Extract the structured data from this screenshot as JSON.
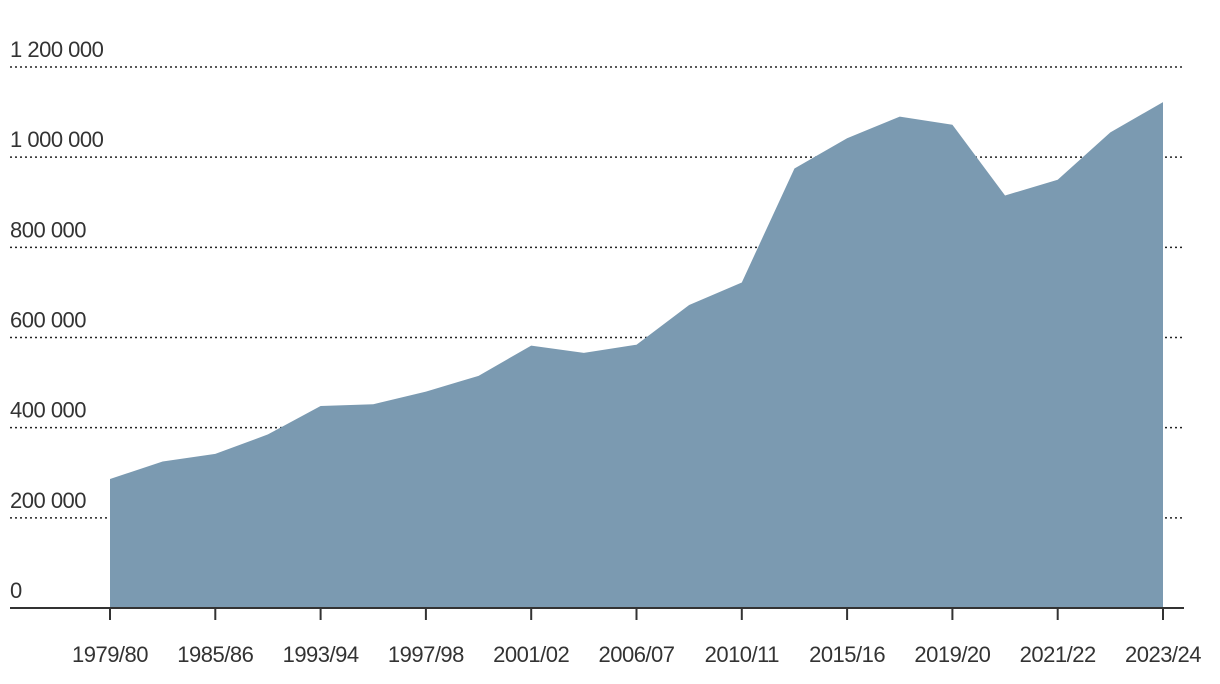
{
  "chart_data": {
    "type": "area",
    "title": "",
    "xlabel": "",
    "ylabel": "",
    "ylim": [
      0,
      1200000
    ],
    "y_ticks": [
      0,
      200000,
      400000,
      600000,
      800000,
      1000000,
      1200000
    ],
    "y_tick_labels": [
      "0",
      "200 000",
      "400 000",
      "600 000",
      "800 000",
      "1 000 000",
      "1 200 000"
    ],
    "x_tick_labels": [
      "1979/80",
      "1985/86",
      "1993/94",
      "1997/98",
      "2001/02",
      "2006/07",
      "2010/11",
      "2015/16",
      "2019/20",
      "2021/22",
      "2023/24"
    ],
    "grid": true,
    "fill_color": "#7b9ab1",
    "series": [
      {
        "values": [
          286000,
          325000,
          342000,
          385000,
          448000,
          452000,
          480000,
          515000,
          582000,
          566000,
          584000,
          672000,
          722000,
          975000,
          1042000,
          1090000,
          1072000,
          915000,
          950000,
          1055000,
          1122000
        ]
      }
    ]
  }
}
